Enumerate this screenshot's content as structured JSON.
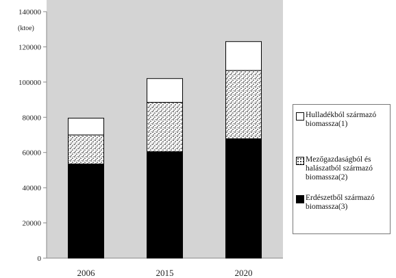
{
  "chart_data": {
    "type": "bar",
    "stacked": true,
    "unit_label": "(ktoe)",
    "categories": [
      "2006",
      "2015",
      "2020"
    ],
    "series": [
      {
        "name": "Erdészetből származó biomassza(3)",
        "values": [
          53500,
          60500,
          67800
        ],
        "fill": "solid-black"
      },
      {
        "name": "Mezőgazdaságból és halászatból származó biomassza(2)",
        "values": [
          16500,
          28000,
          38800
        ],
        "fill": "stipple"
      },
      {
        "name": "Hulladékból származó biomassza(1)",
        "values": [
          9500,
          13500,
          16400
        ],
        "fill": "white"
      }
    ],
    "ylim": [
      0,
      140000
    ],
    "yticks": [
      "0",
      "20000",
      "40000",
      "60000",
      "80000",
      "100000",
      "120000",
      "140000"
    ],
    "grid": false,
    "plot_background": "#d4d4d4",
    "legend_position": "right"
  },
  "legend": [
    {
      "text": "Hulladékból származó biomassza(1)",
      "fill": "white"
    },
    {
      "text": "Mezőgazdaságból és halászatból származó biomassza(2)",
      "fill": "stipple"
    },
    {
      "text": "Erdészetből származó biomassza(3)",
      "fill": "solid-black"
    }
  ]
}
